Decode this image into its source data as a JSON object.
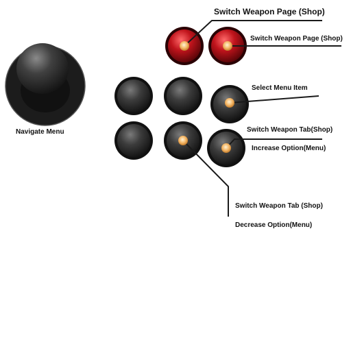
{
  "labels": {
    "navigate": "Navigate Menu",
    "switch_page_top": "Switch Weapon Page (Shop)",
    "switch_page_side": "Switch Weapon Page (Shop)",
    "select_item": "Select Menu Item",
    "switch_tab_right": "Switch Weapon Tab(Shop)",
    "increase_option": "Increase Option(Menu)",
    "switch_tab_bottom": "Switch Weapon Tab (Shop)",
    "decrease_option": "Decrease Option(Menu)"
  },
  "colors": {
    "background": "#ffffff",
    "joystick": "#2a2a2a",
    "button_dark": "#2e2e2e",
    "button_red": "#b0121a",
    "highlight_dot": "#f3b463",
    "leader_line": "#1a1a1a",
    "text": "#111111"
  }
}
